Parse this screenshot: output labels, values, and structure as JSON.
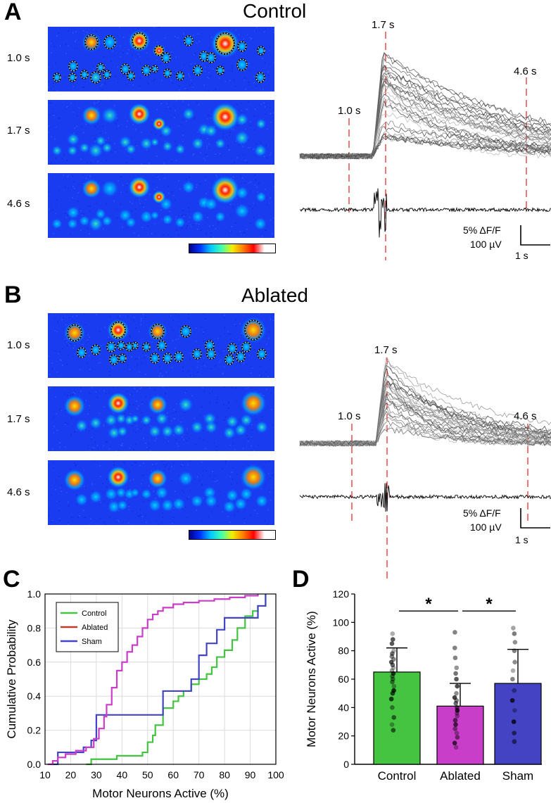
{
  "panels": {
    "A": {
      "letter": "A",
      "title": "Control",
      "rows": [
        {
          "time": "1.0 s",
          "with_rois": true
        },
        {
          "time": "1.7 s",
          "with_rois": false
        },
        {
          "time": "4.6 s",
          "with_rois": false
        }
      ],
      "trace_markers": [
        "1.0 s",
        "1.7 s",
        "4.6 s"
      ],
      "scalebar_ff": "5% ΔF/F",
      "scalebar_uv": "100 µV",
      "scalebar_time": "1 s"
    },
    "B": {
      "letter": "B",
      "title": "Ablated",
      "rows": [
        {
          "time": "1.0 s",
          "with_rois": true
        },
        {
          "time": "1.7 s",
          "with_rois": false
        },
        {
          "time": "4.6 s",
          "with_rois": false
        }
      ],
      "trace_markers": [
        "1.0 s",
        "1.7 s",
        "4.6 s"
      ],
      "scalebar_ff": "5% ΔF/F",
      "scalebar_uv": "100 µV",
      "scalebar_time": "1 s"
    },
    "C": {
      "letter": "C"
    },
    "D": {
      "letter": "D"
    }
  },
  "colors": {
    "control": "#44c441",
    "ablated": "#c93ec9",
    "ablated_legend": "#c0392b",
    "sham": "#4343c4",
    "marker_red": "#e02020"
  },
  "chart_data": [
    {
      "type": "line",
      "panel": "C",
      "xlabel": "Motor Neurons Active (%)",
      "ylabel": "Cumulative Probability",
      "xlim": [
        10,
        100
      ],
      "ylim": [
        0,
        1.0
      ],
      "xticks": [
        10,
        20,
        30,
        40,
        50,
        60,
        70,
        80,
        90,
        100
      ],
      "yticks": [
        0.0,
        0.2,
        0.4,
        0.6,
        0.8,
        1.0
      ],
      "grid": true,
      "legend": "top-left",
      "legend_entries": [
        "Control",
        "Ablated",
        "Sham"
      ],
      "series": [
        {
          "name": "Control",
          "color": "#44c441",
          "x": [
            26,
            28,
            38,
            48,
            50,
            52,
            53,
            56,
            60,
            62,
            64,
            67,
            70,
            73,
            75,
            77,
            80,
            83,
            85,
            88,
            91,
            93,
            96
          ],
          "y": [
            0.0,
            0.03,
            0.05,
            0.07,
            0.13,
            0.17,
            0.23,
            0.33,
            0.37,
            0.4,
            0.43,
            0.47,
            0.5,
            0.53,
            0.57,
            0.63,
            0.67,
            0.73,
            0.8,
            0.87,
            0.9,
            0.93,
            1.0
          ]
        },
        {
          "name": "Sham",
          "color": "#4343c4",
          "x": [
            13,
            15,
            18,
            25,
            28,
            30,
            33,
            53,
            56,
            63,
            67,
            70,
            73,
            77,
            80,
            87,
            93,
            96
          ],
          "y": [
            0.0,
            0.07,
            0.07,
            0.1,
            0.14,
            0.29,
            0.29,
            0.29,
            0.43,
            0.43,
            0.5,
            0.64,
            0.71,
            0.79,
            0.86,
            0.86,
            0.93,
            1.0
          ]
        },
        {
          "name": "Ablated",
          "color": "#c93ec9",
          "x": [
            11,
            13,
            15,
            18,
            22,
            26,
            29,
            31,
            33,
            34,
            36,
            38,
            40,
            42,
            44,
            46,
            48,
            50,
            52,
            54,
            56,
            60,
            64,
            70,
            76,
            82,
            88,
            93
          ],
          "y": [
            0.0,
            0.02,
            0.04,
            0.06,
            0.08,
            0.1,
            0.15,
            0.21,
            0.28,
            0.35,
            0.45,
            0.55,
            0.6,
            0.66,
            0.7,
            0.75,
            0.8,
            0.85,
            0.88,
            0.9,
            0.92,
            0.94,
            0.95,
            0.96,
            0.97,
            0.98,
            0.99,
            1.0
          ]
        }
      ]
    },
    {
      "type": "bar",
      "panel": "D",
      "categories": [
        "Control",
        "Ablated",
        "Sham"
      ],
      "values": [
        65,
        41,
        57
      ],
      "errors": [
        17,
        16,
        24
      ],
      "colors": [
        "#44c441",
        "#c93ec9",
        "#4343c4"
      ],
      "ylabel": "Motor Neurons Active (%)",
      "ylim": [
        0,
        120
      ],
      "yticks": [
        0,
        20,
        40,
        60,
        80,
        100,
        120
      ],
      "significance": [
        {
          "from": "Control",
          "to": "Ablated",
          "label": "*"
        },
        {
          "from": "Ablated",
          "to": "Sham",
          "label": "*"
        }
      ],
      "points": {
        "Control": [
          92,
          88,
          85,
          80,
          78,
          76,
          74,
          72,
          70,
          68,
          66,
          64,
          62,
          60,
          58,
          55,
          52,
          50,
          46,
          40,
          33,
          28,
          24
        ],
        "Ablated": [
          93,
          82,
          75,
          68,
          64,
          60,
          55,
          50,
          47,
          45,
          43,
          40,
          38,
          36,
          34,
          31,
          28,
          25,
          22,
          19,
          15,
          12
        ],
        "Sham": [
          96,
          92,
          86,
          80,
          72,
          66,
          60,
          52,
          45,
          38,
          30,
          22,
          16
        ]
      }
    }
  ]
}
